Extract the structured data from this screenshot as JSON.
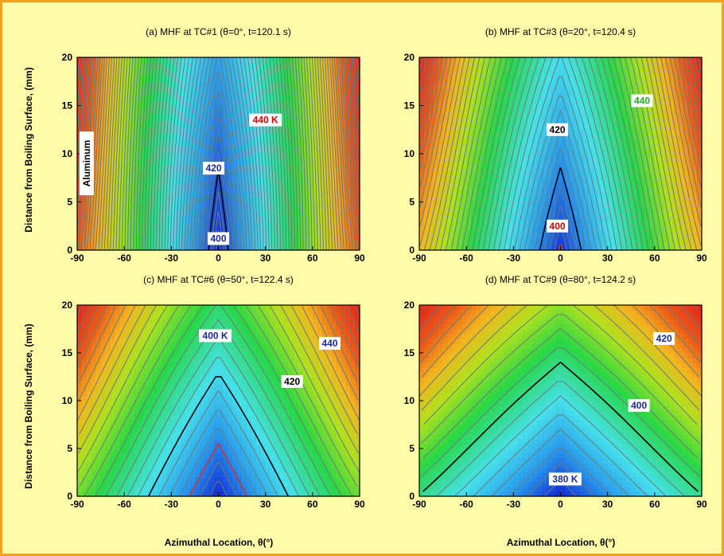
{
  "axes": {
    "ylabel": "Distance from Boiling Surface, (mm)",
    "xlabel": "Azimuthal Location, θ(°)"
  },
  "chart_data": [
    {
      "type": "heatmap",
      "title": "(a) MHF at TC#1 (θ=0°, t=120.1 s)",
      "xlim": [
        -90,
        90
      ],
      "ylim": [
        0,
        20
      ],
      "xticks": [
        -90,
        -60,
        -30,
        0,
        30,
        60,
        90
      ],
      "yticks": [
        0,
        5,
        10,
        15,
        20
      ],
      "tmin": 400,
      "contour_step": 5,
      "x_ticklabels": [
        "-90",
        "-60",
        "-30",
        "0",
        "30",
        "60",
        "90"
      ],
      "y_ticklabels": [
        "0",
        "5",
        "10",
        "15",
        "20"
      ],
      "field": {
        "T0": 400,
        "a": 3.5,
        "b": 0.0165,
        "edge_damp": 0.2,
        "y_edge_gain": 0.35
      },
      "highlight_contours": [
        {
          "T": 420,
          "color": "#000000"
        }
      ],
      "labels": [
        {
          "text": "440 K",
          "x": 30,
          "y": 13.5,
          "color": "#cc0000"
        },
        {
          "text": "420",
          "x": -3,
          "y": 8.5,
          "color": "#1a2a9a"
        },
        {
          "text": "400",
          "x": 0,
          "y": 1.2,
          "color": "#1a2a9a"
        }
      ],
      "annotation": {
        "text": "Aluminum",
        "x": -84,
        "y": 9
      }
    },
    {
      "type": "heatmap",
      "title": "(b) MHF at TC#3 (θ=20°, t=120.4 s)",
      "xlim": [
        -90,
        90
      ],
      "ylim": [
        0,
        20
      ],
      "xticks": [
        -90,
        -60,
        -30,
        0,
        30,
        60,
        90
      ],
      "yticks": [
        0,
        5,
        10,
        15,
        20
      ],
      "tmin": 395,
      "contour_step": 5,
      "x_ticklabels": [
        "-90",
        "-60",
        "-30",
        "0",
        "30",
        "60",
        "90"
      ],
      "y_ticklabels": [
        "0",
        "5",
        "10",
        "15",
        "20"
      ],
      "field": {
        "T0": 398,
        "a": 1.9,
        "b": 0.0135,
        "edge_damp": 0.15,
        "y_edge_gain": 0.3
      },
      "highlight_contours": [
        {
          "T": 420,
          "color": "#000000"
        },
        {
          "T": 400,
          "color": "#cc3333"
        }
      ],
      "labels": [
        {
          "text": "440",
          "x": 52,
          "y": 15.5,
          "color": "#22aa22"
        },
        {
          "text": "420",
          "x": -2,
          "y": 12.5,
          "color": "#000000"
        },
        {
          "text": "400",
          "x": -2,
          "y": 2.5,
          "color": "#cc0000"
        }
      ]
    },
    {
      "type": "heatmap",
      "title": "(c) MHF at TC#6 (θ=50°, t=122.4 s)",
      "xlim": [
        -90,
        90
      ],
      "ylim": [
        0,
        20
      ],
      "xticks": [
        -90,
        -60,
        -30,
        0,
        30,
        60,
        90
      ],
      "yticks": [
        0,
        5,
        10,
        15,
        20
      ],
      "tmin": 385,
      "contour_step": 5,
      "x_ticklabels": [
        "-90",
        "-60",
        "-30",
        "0",
        "30",
        "60",
        "90"
      ],
      "y_ticklabels": [
        "0",
        "5",
        "10",
        "15",
        "20"
      ],
      "field": {
        "T0": 385,
        "a": 0.95,
        "b": 0.011,
        "edge_damp": 0.1,
        "y_edge_gain": 0.2
      },
      "highlight_contours": [
        {
          "T": 420,
          "color": "#000000"
        },
        {
          "T": 400,
          "color": "#cc3333"
        }
      ],
      "labels": [
        {
          "text": "400 K",
          "x": -2,
          "y": 16.8,
          "color": "#1a2a9a"
        },
        {
          "text": "440",
          "x": 71,
          "y": 16.0,
          "color": "#1a2a9a"
        },
        {
          "text": "420",
          "x": 47,
          "y": 12.0,
          "color": "#000000"
        }
      ]
    },
    {
      "type": "heatmap",
      "title": "(d) MHF at TC#9 (θ=80°, t=124.2 s)",
      "xlim": [
        -90,
        90
      ],
      "ylim": [
        0,
        20
      ],
      "xticks": [
        -90,
        -60,
        -30,
        0,
        30,
        60,
        90
      ],
      "yticks": [
        0,
        5,
        10,
        15,
        20
      ],
      "tmin": 380,
      "contour_step": 5,
      "x_ticklabels": [
        "-90",
        "-60",
        "-30",
        "0",
        "30",
        "60",
        "90"
      ],
      "y_ticklabels": [
        "0",
        "5",
        "10",
        "15",
        "20"
      ],
      "field": {
        "T0": 380,
        "a": 0.55,
        "b": 0.011,
        "edge_damp": 0.05,
        "y_edge_gain": 0.15
      },
      "highlight_contours": [
        {
          "T": 420,
          "color": "#000000"
        },
        {
          "T": 380.6,
          "color": "#cc3333"
        }
      ],
      "labels": [
        {
          "text": "420",
          "x": 66,
          "y": 16.5,
          "color": "#1a2a9a"
        },
        {
          "text": "400",
          "x": 50,
          "y": 9.5,
          "color": "#1a2a9a"
        },
        {
          "text": "380 K",
          "x": 3,
          "y": 1.8,
          "color": "#1a2a9a"
        }
      ]
    }
  ]
}
